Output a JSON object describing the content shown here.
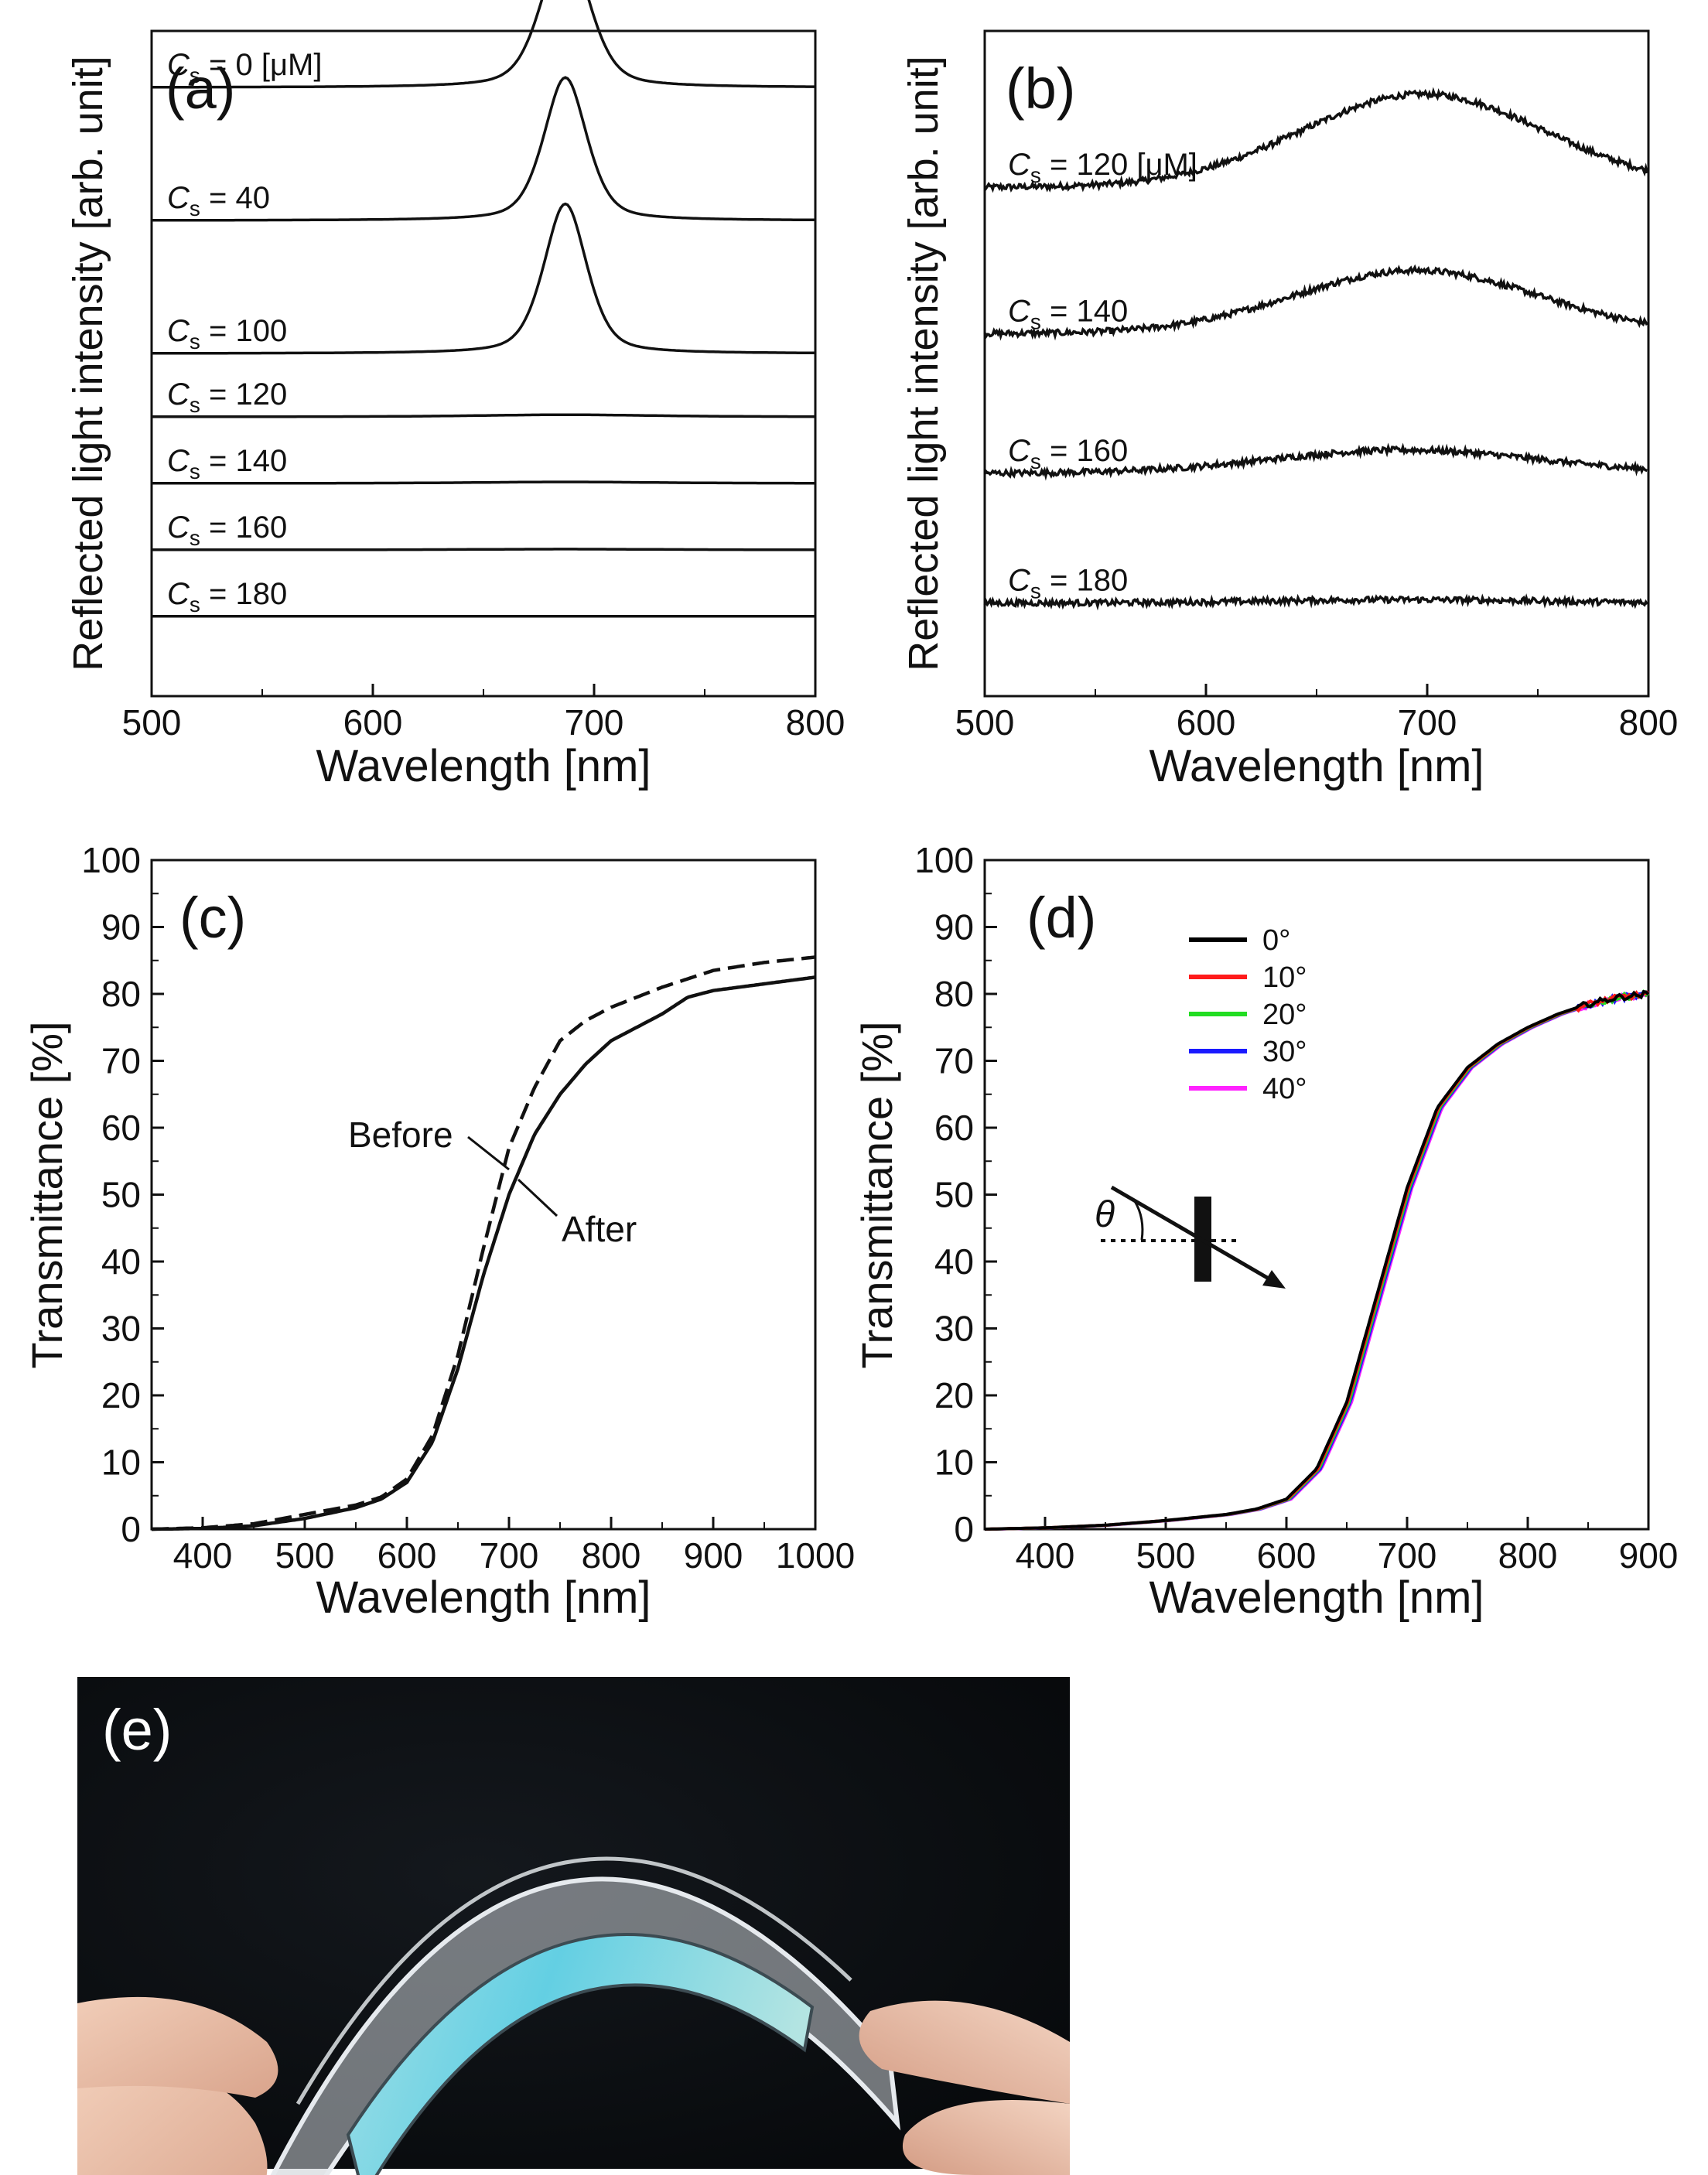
{
  "chart_data": [
    {
      "type": "line",
      "panel_label": "(a)",
      "ylabel": "Reflected light intensity [arb. unit]",
      "xlabel": "Wavelength [nm]",
      "xlim": [
        500,
        800
      ],
      "ylim": [
        0,
        10
      ],
      "xticks": [
        500,
        600,
        700,
        800
      ],
      "label_prefix": "C",
      "label_subscript": "s",
      "series": [
        {
          "label": "= 0 [μM]",
          "offset": 9.15,
          "peak_center": 687,
          "peak_height": 2.2,
          "peak_width": 11,
          "noise": 0
        },
        {
          "label": "= 40",
          "offset": 7.15,
          "peak_center": 687,
          "peak_height": 2.15,
          "peak_width": 10,
          "noise": 0
        },
        {
          "label": "= 100",
          "offset": 5.15,
          "peak_center": 687,
          "peak_height": 2.25,
          "peak_width": 10,
          "noise": 0
        },
        {
          "label": "= 120",
          "offset": 4.2,
          "peak_center": 687,
          "peak_height": 0.03,
          "peak_width": 40,
          "noise": 0
        },
        {
          "label": "= 140",
          "offset": 3.2,
          "peak_center": 687,
          "peak_height": 0.02,
          "peak_width": 40,
          "noise": 0
        },
        {
          "label": "= 160",
          "offset": 2.2,
          "peak_center": 687,
          "peak_height": 0.01,
          "peak_width": 40,
          "noise": 0
        },
        {
          "label": "= 180",
          "offset": 1.2,
          "peak_center": 687,
          "peak_height": 0.0,
          "peak_width": 40,
          "noise": 0
        }
      ]
    },
    {
      "type": "line",
      "panel_label": "(b)",
      "ylabel": "Reflected light intensity [arb. unit]",
      "xlabel": "Wavelength [nm]",
      "xlim": [
        500,
        800
      ],
      "ylim": [
        0,
        10
      ],
      "xticks": [
        500,
        600,
        700,
        800
      ],
      "label_prefix": "C",
      "label_subscript": "s",
      "series": [
        {
          "label": "= 120 [μM]",
          "offset": 7.65,
          "peak_center": 698,
          "peak_height": 1.4,
          "peak_width": 55,
          "noise": 0.09
        },
        {
          "label": "= 140",
          "offset": 5.45,
          "peak_center": 695,
          "peak_height": 0.95,
          "peak_width": 55,
          "noise": 0.09
        },
        {
          "label": "= 160",
          "offset": 3.35,
          "peak_center": 690,
          "peak_height": 0.35,
          "peak_width": 60,
          "noise": 0.09
        },
        {
          "label": "= 180",
          "offset": 1.4,
          "peak_center": 690,
          "peak_height": 0.05,
          "peak_width": 60,
          "noise": 0.09
        }
      ]
    },
    {
      "type": "line",
      "panel_label": "(c)",
      "ylabel": "Transmittance [%]",
      "xlabel": "Wavelength [nm]",
      "xlim": [
        350,
        1000
      ],
      "ylim": [
        0,
        100
      ],
      "xticks": [
        400,
        500,
        600,
        700,
        800,
        900,
        1000
      ],
      "yticks": [
        0,
        10,
        20,
        30,
        40,
        50,
        60,
        70,
        80,
        90,
        100
      ],
      "series": [
        {
          "name": "Before",
          "dash": true,
          "x": [
            350,
            400,
            450,
            500,
            550,
            575,
            600,
            625,
            650,
            675,
            700,
            725,
            750,
            775,
            800,
            850,
            900,
            950,
            1000
          ],
          "y": [
            0,
            0.2,
            0.8,
            2.2,
            3.6,
            4.8,
            7.5,
            14,
            26,
            42,
            57,
            66,
            73,
            76,
            78,
            81,
            83.5,
            84.7,
            85.5
          ]
        },
        {
          "name": "After",
          "dash": false,
          "x": [
            350,
            400,
            450,
            500,
            550,
            575,
            600,
            625,
            650,
            675,
            700,
            725,
            750,
            775,
            800,
            825,
            850,
            875,
            900,
            950,
            1000
          ],
          "y": [
            0,
            0.1,
            0.5,
            1.6,
            3.2,
            4.5,
            7.0,
            13,
            24,
            38,
            50,
            59,
            65,
            69.5,
            73,
            75,
            77,
            79.5,
            80.5,
            81.5,
            82.5
          ]
        }
      ],
      "annotations": [
        "Before",
        "After"
      ]
    },
    {
      "type": "line",
      "panel_label": "(d)",
      "ylabel": "Transmittance [%]",
      "xlabel": "Wavelength [nm]",
      "xlim": [
        350,
        900
      ],
      "ylim": [
        0,
        100
      ],
      "xticks": [
        400,
        500,
        600,
        700,
        800,
        900
      ],
      "yticks": [
        0,
        10,
        20,
        30,
        40,
        50,
        60,
        70,
        80,
        90,
        100
      ],
      "legend_position": "top-center",
      "inset_symbol": "θ",
      "base_curve": {
        "x": [
          350,
          400,
          450,
          500,
          550,
          575,
          600,
          625,
          650,
          675,
          700,
          725,
          750,
          775,
          800,
          825,
          850,
          875,
          900
        ],
        "y": [
          0,
          0.2,
          0.6,
          1.3,
          2.2,
          3.0,
          4.5,
          9,
          19,
          35,
          51,
          63,
          69,
          72.5,
          75,
          77,
          78.5,
          79.5,
          80
        ]
      },
      "series": [
        {
          "name": "0°",
          "color": "#000000",
          "shift": 0
        },
        {
          "name": "10°",
          "color": "#ff1a1a",
          "shift": 1
        },
        {
          "name": "20°",
          "color": "#22dd22",
          "shift": 2
        },
        {
          "name": "30°",
          "color": "#1a1aff",
          "shift": 3
        },
        {
          "name": "40°",
          "color": "#ff22ff",
          "shift": 4
        }
      ]
    }
  ],
  "photo": {
    "panel_label": "(e)",
    "film_color": "#7fd7e6",
    "background_color": "#0b0d10"
  }
}
